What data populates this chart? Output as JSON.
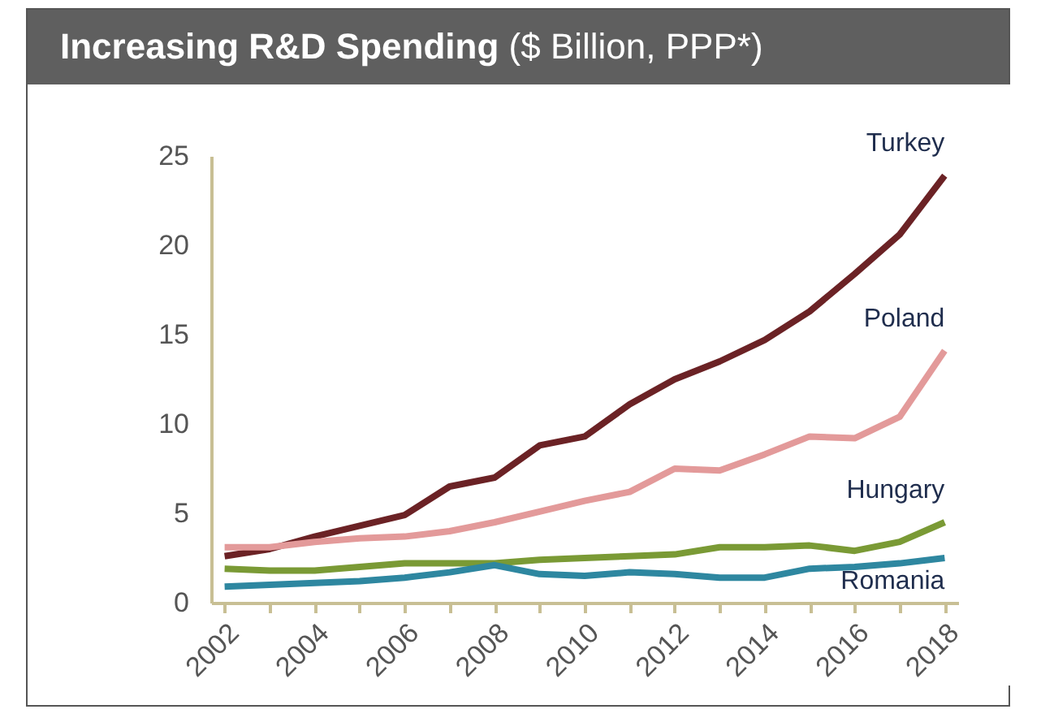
{
  "chart_data": {
    "type": "line",
    "title": "Increasing R&D Spending",
    "subtitle": "($ Billion, PPP*)",
    "categories": [
      "2002",
      null,
      "2004",
      null,
      "2006",
      null,
      "2008",
      null,
      "2010",
      null,
      "2012",
      null,
      "2014",
      null,
      "2016",
      null,
      "2018"
    ],
    "ylim": [
      0,
      25
    ],
    "yticks": [
      0,
      5,
      10,
      15,
      20,
      25
    ],
    "grid": false,
    "legend": false,
    "series": [
      {
        "name": "Turkey",
        "color": "#6b2225",
        "values": [
          2.6,
          3.0,
          3.7,
          4.3,
          4.9,
          6.5,
          7.0,
          8.8,
          9.3,
          11.1,
          12.5,
          13.5,
          14.7,
          16.3,
          18.4,
          20.6,
          23.9
        ]
      },
      {
        "name": "Poland",
        "color": "#e39a9a",
        "values": [
          3.1,
          3.1,
          3.4,
          3.6,
          3.7,
          4.0,
          4.5,
          5.1,
          5.7,
          6.2,
          7.5,
          7.4,
          8.3,
          9.3,
          9.2,
          10.4,
          14.1
        ]
      },
      {
        "name": "Hungary",
        "color": "#7a9a35",
        "values": [
          1.9,
          1.8,
          1.8,
          2.0,
          2.2,
          2.2,
          2.2,
          2.4,
          2.5,
          2.6,
          2.7,
          3.1,
          3.1,
          3.2,
          2.9,
          3.4,
          4.5
        ]
      },
      {
        "name": "Romania",
        "color": "#2e87a0",
        "values": [
          0.9,
          1.0,
          1.1,
          1.2,
          1.4,
          1.7,
          2.1,
          1.6,
          1.5,
          1.7,
          1.6,
          1.4,
          1.4,
          1.9,
          2.0,
          2.2,
          2.5
        ]
      }
    ]
  }
}
